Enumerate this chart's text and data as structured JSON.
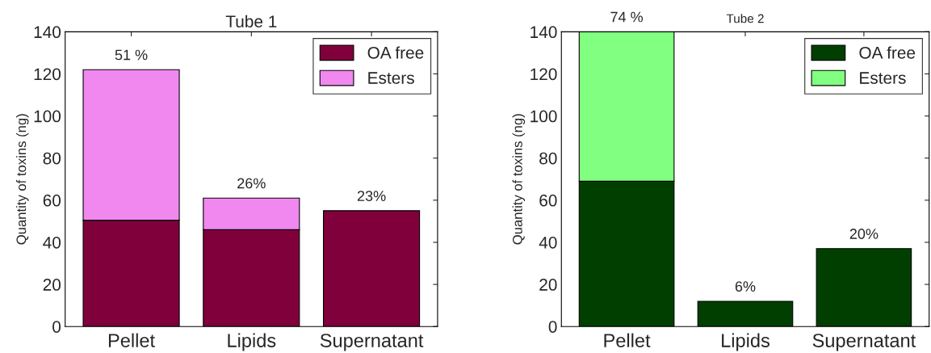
{
  "chart_data": [
    {
      "type": "bar",
      "title": "Tube 1",
      "ylabel": "Quantity of toxins (ng)",
      "categories": [
        "Pellet",
        "Lipids",
        "Supernatant"
      ],
      "stacked": true,
      "series": [
        {
          "name": "OA free",
          "color": "#80003c",
          "values": [
            50.5,
            46,
            55
          ]
        },
        {
          "name": "Esters",
          "color": "#f088f0",
          "values": [
            71.5,
            15,
            null
          ]
        }
      ],
      "ylim": [
        0,
        140
      ],
      "yticks": [
        0,
        20,
        40,
        60,
        80,
        100,
        120,
        140
      ],
      "legend": "top right",
      "grid": false,
      "annotations": [
        {
          "text": "51 %",
          "x": "Pellet",
          "y": 122
        },
        {
          "text": "26%",
          "x": "Lipids",
          "y": 61
        },
        {
          "text": "23%",
          "x": "Supernatant",
          "y": 55
        }
      ]
    },
    {
      "type": "bar",
      "title": "Tube 2",
      "ylabel": "Quantity of toxins (ng)",
      "categories": [
        "Pellet",
        "Lipids",
        "Supernatant"
      ],
      "stacked": true,
      "series": [
        {
          "name": "OA free",
          "color": "#003f00",
          "values": [
            69,
            12,
            37
          ]
        },
        {
          "name": "Esters",
          "color": "#80ff80",
          "values": [
            71,
            null,
            null
          ]
        }
      ],
      "ylim": [
        0,
        140
      ],
      "yticks": [
        0,
        20,
        40,
        60,
        80,
        100,
        120,
        140
      ],
      "legend": "top right",
      "grid": false,
      "annotations": [
        {
          "text": "74 %",
          "x": "Pellet",
          "y": 140
        },
        {
          "text": "6%",
          "x": "Lipids",
          "y": 12
        },
        {
          "text": "20%",
          "x": "Supernatant",
          "y": 37
        }
      ]
    }
  ]
}
